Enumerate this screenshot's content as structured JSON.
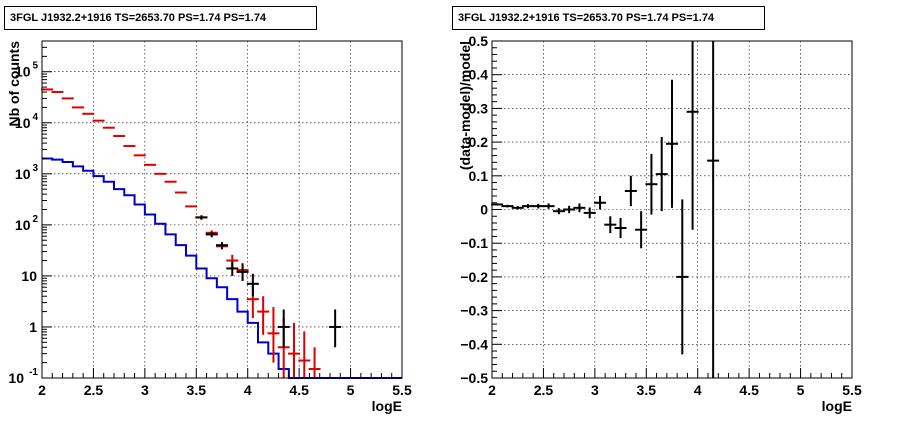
{
  "colors": {
    "black": "#000000",
    "red": "#dd0000",
    "blue": "#0000cc"
  },
  "chart_data": [
    {
      "type": "scatter",
      "title": "3FGL J1932.2+1916 TS=2653.70 PS=1.74 PS=1.74",
      "xlabel": "logE",
      "ylabel": "Nb of counts",
      "xlim": [
        2,
        5.5
      ],
      "ylim": [
        0.1,
        400000
      ],
      "yscale": "log",
      "grid": true,
      "xticks": [
        "2",
        "2.5",
        "3",
        "3.5",
        "4",
        "4.5",
        "5",
        "5.5"
      ],
      "yticks": [
        {
          "v": 0.1,
          "label": "10",
          "exp": "-1"
        },
        {
          "v": 1,
          "label": "1",
          "exp": ""
        },
        {
          "v": 10,
          "label": "10",
          "exp": ""
        },
        {
          "v": 100,
          "label": "10",
          "exp": "2"
        },
        {
          "v": 1000,
          "label": "10",
          "exp": "3"
        },
        {
          "v": 10000,
          "label": "10",
          "exp": "4"
        },
        {
          "v": 100000,
          "label": "10",
          "exp": "5"
        }
      ],
      "bin_edges": [
        2,
        2.1,
        2.2,
        2.3,
        2.4,
        2.5,
        2.6,
        2.7,
        2.8,
        2.9,
        3,
        3.1,
        3.2,
        3.3,
        3.4,
        3.5,
        3.6,
        3.7,
        3.8,
        3.9,
        4,
        4.1,
        4.2,
        4.3,
        4.4,
        4.5,
        4.6,
        4.7,
        4.8,
        4.9,
        5,
        5.1,
        5.2,
        5.3,
        5.4,
        5.5
      ],
      "model_blue": [
        2000,
        1900,
        1700,
        1400,
        1150,
        900,
        700,
        500,
        380,
        250,
        160,
        105,
        65,
        40,
        25,
        14,
        9,
        6,
        3.5,
        2,
        1.2,
        0.5,
        0.3,
        0.15,
        0.1,
        0.1,
        0.1,
        0.1,
        0.1,
        0.1,
        0.1,
        0.1,
        0.1,
        0.1,
        0.1
      ],
      "series": [
        {
          "name": "",
          "color": "red",
          "x": [
            2.05,
            2.15,
            2.25,
            2.35,
            2.45,
            2.55,
            2.65,
            2.75,
            2.85,
            2.95,
            3.05,
            3.15,
            3.25,
            3.35,
            3.45,
            3.55,
            3.65,
            3.75,
            3.85,
            3.95,
            4.05,
            4.15,
            4.25,
            4.35,
            4.45,
            4.55,
            4.65
          ],
          "y": [
            45000,
            40000,
            30000,
            20000,
            15000,
            11000,
            8000,
            5500,
            3500,
            2300,
            1500,
            1000,
            700,
            430,
            230,
            140,
            70,
            38,
            20,
            13,
            3.5,
            2.0,
            0.75,
            0.4,
            0.3,
            0.22,
            0.15
          ],
          "yerr_low": [
            0,
            0,
            0,
            0,
            0,
            0,
            0,
            0,
            0,
            0,
            0,
            0,
            0,
            0,
            0,
            15,
            8,
            5,
            6,
            5,
            2.0,
            1.3,
            0.55,
            0.3,
            0.2,
            0.13,
            0.05
          ],
          "yerr_high": [
            0,
            0,
            0,
            0,
            0,
            0,
            0,
            0,
            0,
            0,
            0,
            0,
            0,
            0,
            0,
            15,
            8,
            5,
            6,
            5,
            3.0,
            2.0,
            1.7,
            1.1,
            0.9,
            0.6,
            0.25
          ]
        },
        {
          "name": "",
          "color": "black",
          "x": [
            3.55,
            3.65,
            3.75,
            3.85,
            3.95,
            4.05,
            4.35,
            4.85
          ],
          "y": [
            140,
            65,
            40,
            14,
            12,
            7,
            1.0,
            1.0
          ],
          "yerr_low": [
            12,
            8,
            6,
            4,
            4,
            3,
            0.6,
            0.6
          ],
          "yerr_high": [
            12,
            8,
            6,
            5,
            5,
            4,
            1.2,
            1.2
          ]
        }
      ]
    },
    {
      "type": "scatter",
      "title": "3FGL J1932.2+1916 TS=2653.70 PS=1.74 PS=1.74",
      "xlabel": "logE",
      "ylabel": "(data-model)/model",
      "xlim": [
        2,
        5.5
      ],
      "ylim": [
        -0.5,
        0.5
      ],
      "grid": true,
      "xticks": [
        "2",
        "2.5",
        "3",
        "3.5",
        "4",
        "4.5",
        "5",
        "5.5"
      ],
      "yticks": [
        "0.5",
        "0.4",
        "0.3",
        "0.2",
        "0.1",
        "0",
        "−0.1",
        "−0.2",
        "−0.3",
        "−0.4",
        "−0.5"
      ],
      "series": [
        {
          "name": "",
          "color": "black",
          "x": [
            2.05,
            2.15,
            2.25,
            2.35,
            2.45,
            2.55,
            2.65,
            2.75,
            2.85,
            2.95,
            3.05,
            3.15,
            3.25,
            3.35,
            3.45,
            3.55,
            3.65,
            3.75,
            3.85,
            3.95,
            4.15
          ],
          "y": [
            0.015,
            0.01,
            0.005,
            0.01,
            0.01,
            0.01,
            -0.005,
            0.0,
            0.005,
            -0.01,
            0.02,
            -0.045,
            -0.055,
            0.055,
            -0.06,
            0.075,
            0.105,
            0.195,
            -0.2,
            0.29,
            0.145
          ],
          "yerr": [
            0.003,
            0.004,
            0.005,
            0.006,
            0.007,
            0.008,
            0.009,
            0.011,
            0.013,
            0.016,
            0.02,
            0.025,
            0.03,
            0.045,
            0.055,
            0.09,
            0.11,
            0.19,
            0.23,
            0.35,
            0.7
          ]
        }
      ]
    }
  ]
}
